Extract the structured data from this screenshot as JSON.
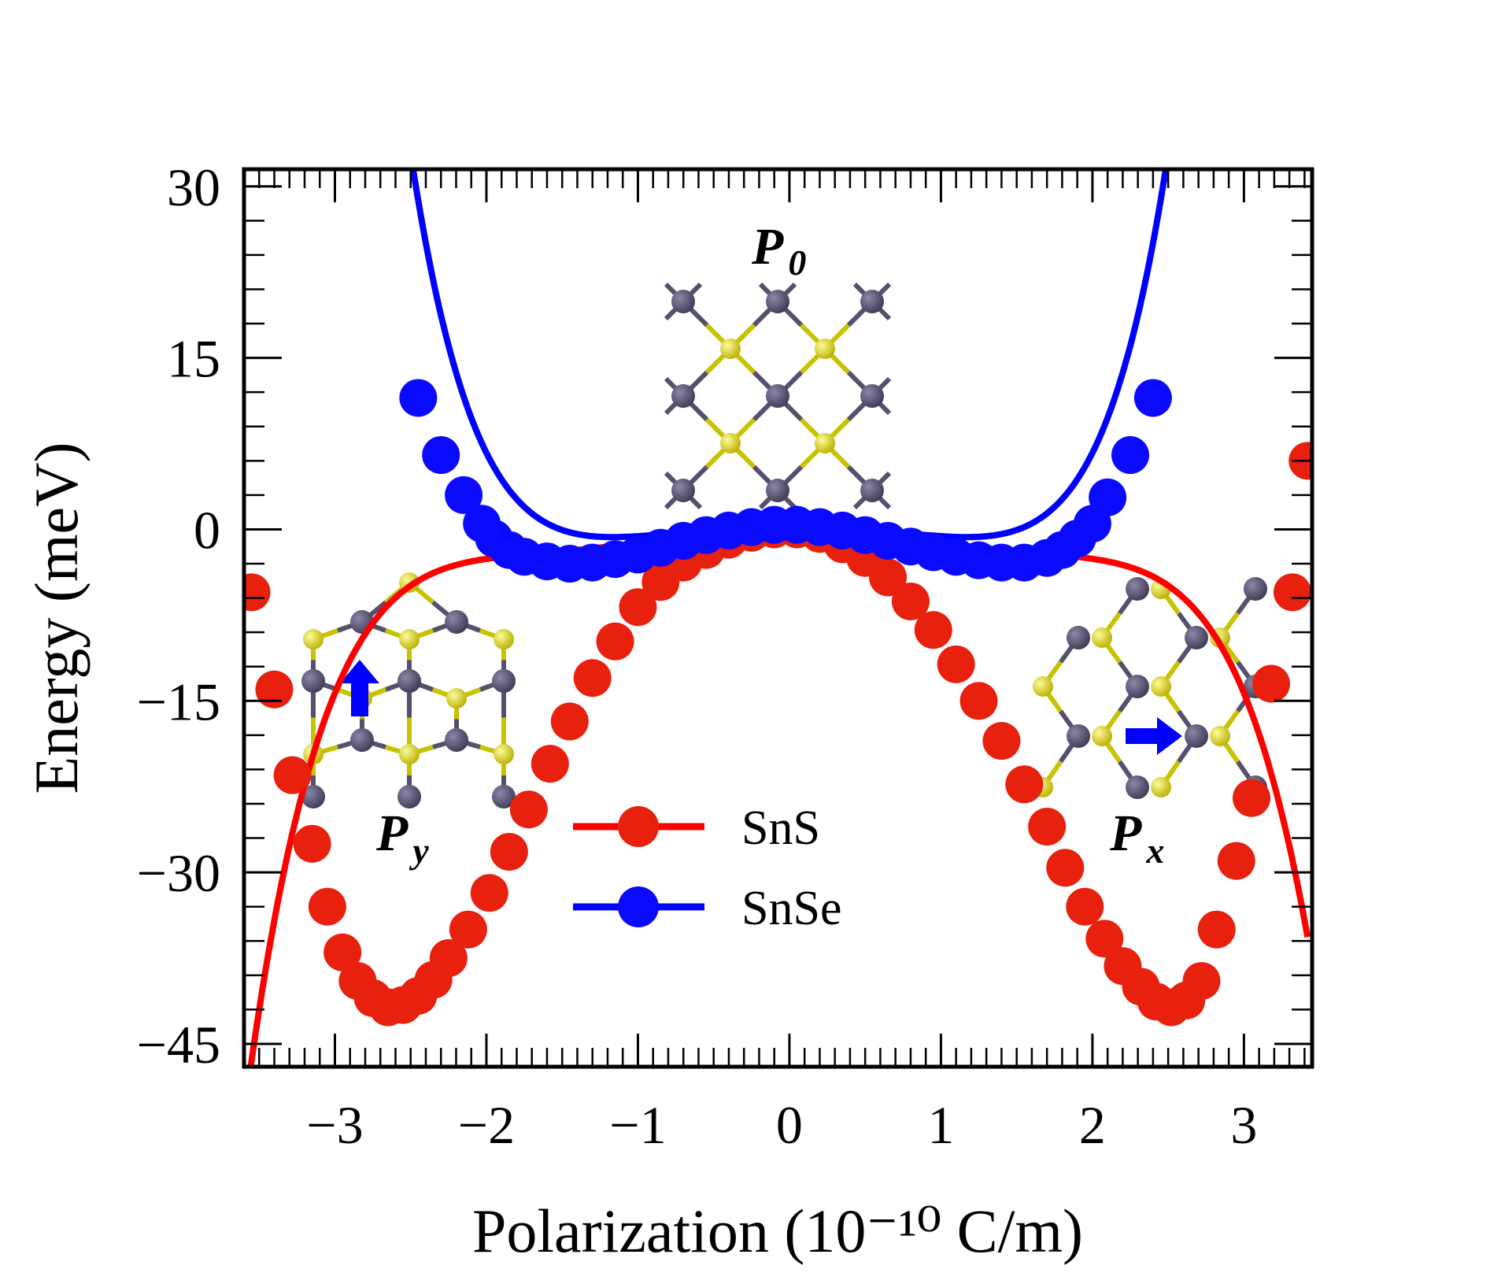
{
  "chart_data": {
    "type": "line",
    "xlabel": "Polarization (10⁻¹⁰ C/m)",
    "ylabel": "Energy (meV)",
    "xlim": [
      -3.6,
      3.45
    ],
    "ylim": [
      -47,
      31.5
    ],
    "xticks": [
      -3,
      -2,
      -1,
      0,
      1,
      2,
      3
    ],
    "xtick_labels": [
      "−3",
      "−2",
      "−1",
      "0",
      "1",
      "2",
      "3"
    ],
    "yticks": [
      30,
      15,
      0,
      -15,
      -30,
      -45
    ],
    "ytick_labels": [
      "30",
      "15",
      "0",
      "−15",
      "−30",
      "−45"
    ],
    "series": [
      {
        "name": "SnS",
        "color": "#ff0000",
        "marker_color": "#e8200e",
        "fit": {
          "a": -0.0226,
          "b": 3.04,
          "c": 0.53,
          "d": -0.09,
          "x_min": -3.6,
          "x_max": 3.42
        },
        "points": [
          [
            -3.55,
            -5.5
          ],
          [
            -3.4,
            -14.0
          ],
          [
            -3.28,
            -21.5
          ],
          [
            -3.15,
            -27.5
          ],
          [
            -3.05,
            -33.0
          ],
          [
            -2.95,
            -37.0
          ],
          [
            -2.85,
            -39.5
          ],
          [
            -2.75,
            -41.0
          ],
          [
            -2.65,
            -41.8
          ],
          [
            -2.55,
            -41.6
          ],
          [
            -2.45,
            -40.8
          ],
          [
            -2.35,
            -39.4
          ],
          [
            -2.25,
            -37.5
          ],
          [
            -2.12,
            -35.0
          ],
          [
            -1.98,
            -31.8
          ],
          [
            -1.85,
            -28.2
          ],
          [
            -1.72,
            -24.5
          ],
          [
            -1.58,
            -20.5
          ],
          [
            -1.45,
            -16.8
          ],
          [
            -1.3,
            -13.0
          ],
          [
            -1.15,
            -9.8
          ],
          [
            -1.0,
            -6.8
          ],
          [
            -0.85,
            -4.6
          ],
          [
            -0.7,
            -2.9
          ],
          [
            -0.55,
            -1.8
          ],
          [
            -0.4,
            -0.9
          ],
          [
            -0.25,
            -0.3
          ],
          [
            -0.1,
            0.0
          ],
          [
            0.05,
            0.0
          ],
          [
            0.2,
            -0.4
          ],
          [
            0.35,
            -1.3
          ],
          [
            0.5,
            -2.5
          ],
          [
            0.65,
            -4.2
          ],
          [
            0.8,
            -6.3
          ],
          [
            0.95,
            -8.8
          ],
          [
            1.1,
            -11.8
          ],
          [
            1.25,
            -15.0
          ],
          [
            1.4,
            -18.5
          ],
          [
            1.55,
            -22.3
          ],
          [
            1.7,
            -26.0
          ],
          [
            1.82,
            -29.6
          ],
          [
            1.95,
            -33.0
          ],
          [
            2.08,
            -35.8
          ],
          [
            2.2,
            -38.2
          ],
          [
            2.32,
            -40.0
          ],
          [
            2.42,
            -41.3
          ],
          [
            2.52,
            -41.8
          ],
          [
            2.62,
            -41.2
          ],
          [
            2.72,
            -39.5
          ],
          [
            2.82,
            -35.0
          ],
          [
            2.95,
            -29.0
          ],
          [
            3.05,
            -23.5
          ],
          [
            3.18,
            -13.5
          ],
          [
            3.32,
            -5.5
          ],
          [
            3.42,
            6.0
          ]
        ]
      },
      {
        "name": "SnSe",
        "color": "#0000ff",
        "marker_color": "#0a0aff",
        "fit": {
          "a": 0.155,
          "b": 1.85,
          "c": 0.05,
          "d": 0.5,
          "x_min": -3.05,
          "x_max": 2.98
        },
        "points": [
          [
            -2.45,
            11.5
          ],
          [
            -2.3,
            6.5
          ],
          [
            -2.15,
            3.0
          ],
          [
            -2.03,
            0.5
          ],
          [
            -1.95,
            -0.8
          ],
          [
            -1.85,
            -1.8
          ],
          [
            -1.75,
            -2.4
          ],
          [
            -1.6,
            -2.8
          ],
          [
            -1.45,
            -3.0
          ],
          [
            -1.3,
            -2.9
          ],
          [
            -1.15,
            -2.6
          ],
          [
            -1.0,
            -2.2
          ],
          [
            -0.85,
            -1.6
          ],
          [
            -0.7,
            -1.0
          ],
          [
            -0.55,
            -0.5
          ],
          [
            -0.4,
            -0.1
          ],
          [
            -0.25,
            0.2
          ],
          [
            -0.1,
            0.4
          ],
          [
            0.05,
            0.4
          ],
          [
            0.2,
            0.2
          ],
          [
            0.35,
            -0.1
          ],
          [
            0.5,
            -0.5
          ],
          [
            0.65,
            -1.0
          ],
          [
            0.8,
            -1.5
          ],
          [
            0.95,
            -2.0
          ],
          [
            1.1,
            -2.4
          ],
          [
            1.25,
            -2.7
          ],
          [
            1.4,
            -2.9
          ],
          [
            1.55,
            -2.9
          ],
          [
            1.7,
            -2.5
          ],
          [
            1.8,
            -1.8
          ],
          [
            1.9,
            -0.8
          ],
          [
            2.0,
            0.5
          ],
          [
            2.1,
            2.8
          ],
          [
            2.25,
            6.5
          ],
          [
            2.4,
            11.5
          ]
        ]
      }
    ],
    "legend": {
      "position": "center-bottom",
      "entries": [
        "SnS",
        "SnSe"
      ]
    },
    "annotations": [
      {
        "id": "p0",
        "base": "P",
        "sub": "0",
        "position": "top-center",
        "arrow": "none"
      },
      {
        "id": "py",
        "base": "P",
        "sub": "y",
        "position": "left",
        "arrow": "up"
      },
      {
        "id": "px",
        "base": "P",
        "sub": "x",
        "position": "right",
        "arrow": "right"
      }
    ],
    "structure_colors": {
      "sn": "#56506e",
      "s": "#d8d100",
      "arrow": "#0000ff"
    }
  }
}
